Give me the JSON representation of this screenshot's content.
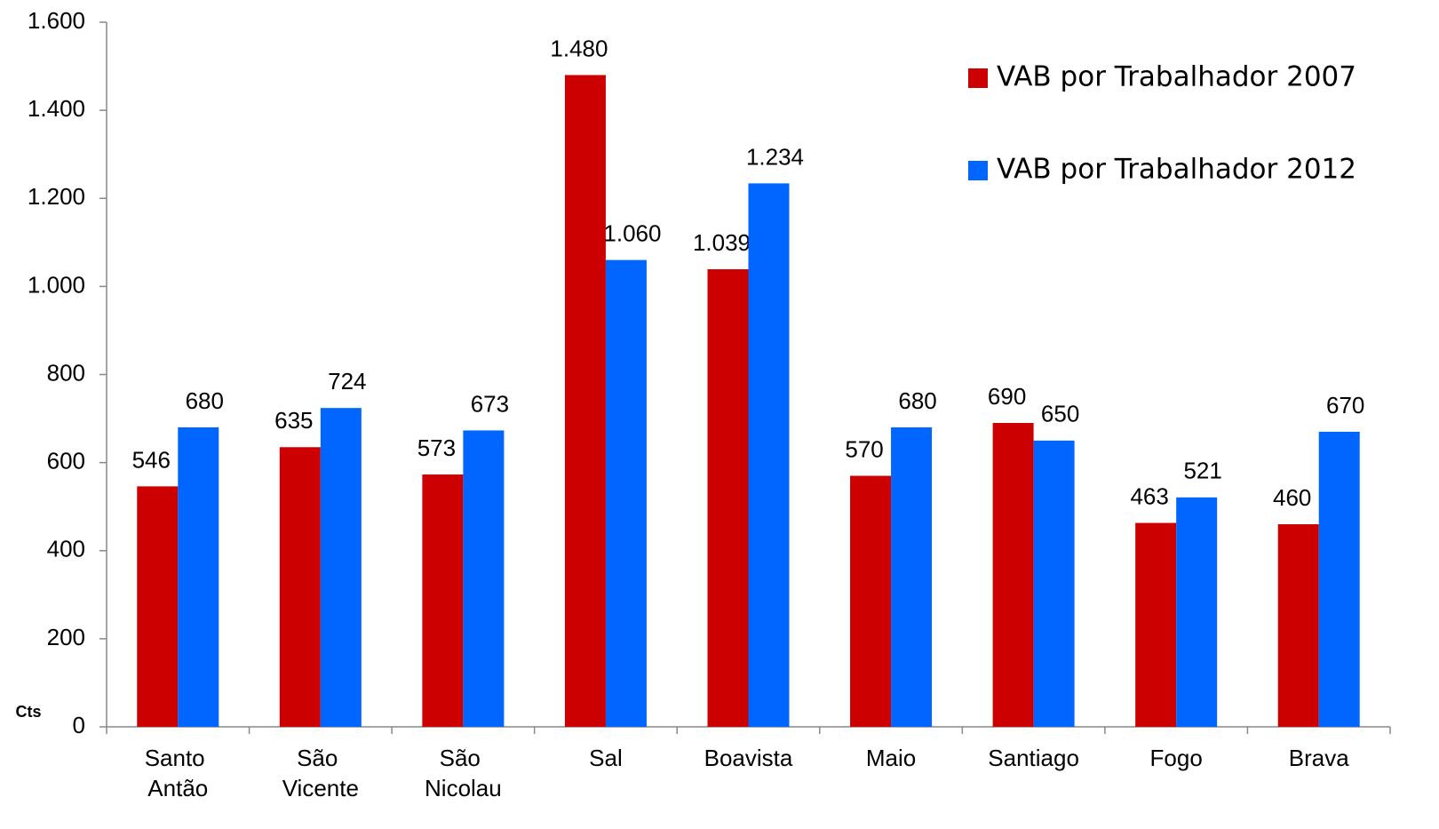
{
  "chart_data": {
    "type": "bar",
    "categories": [
      "Santo Antão",
      "São Vicente",
      "São Nicolau",
      "Sal",
      "Boavista",
      "Maio",
      "Santiago",
      "Fogo",
      "Brava"
    ],
    "series": [
      {
        "name": "VAB por Trabalhador 2007",
        "color": "#cc0000",
        "values": [
          546,
          635,
          573,
          1480,
          1039,
          570,
          690,
          463,
          460
        ],
        "value_labels": [
          "546",
          "635",
          "573",
          "1.480",
          "1.039",
          "570",
          "690",
          "463",
          "460"
        ]
      },
      {
        "name": "VAB por Trabalhador 2012",
        "color": "#0066ff",
        "values": [
          680,
          724,
          673,
          1060,
          1234,
          680,
          650,
          521,
          670
        ],
        "value_labels": [
          "680",
          "724",
          "673",
          "1.060",
          "1.234",
          "680",
          "650",
          "521",
          "670"
        ]
      }
    ],
    "ylabel": "Cts",
    "ylim": [
      0,
      1600
    ],
    "yticks": [
      0,
      200,
      400,
      600,
      800,
      {
        "value": 1000,
        "label": "1.000"
      },
      {
        "value": 1200,
        "label": "1.200"
      },
      {
        "value": 1400,
        "label": "1.400"
      },
      {
        "value": 1600,
        "label": "1.600"
      }
    ],
    "legend": "upper right",
    "grid": false
  }
}
